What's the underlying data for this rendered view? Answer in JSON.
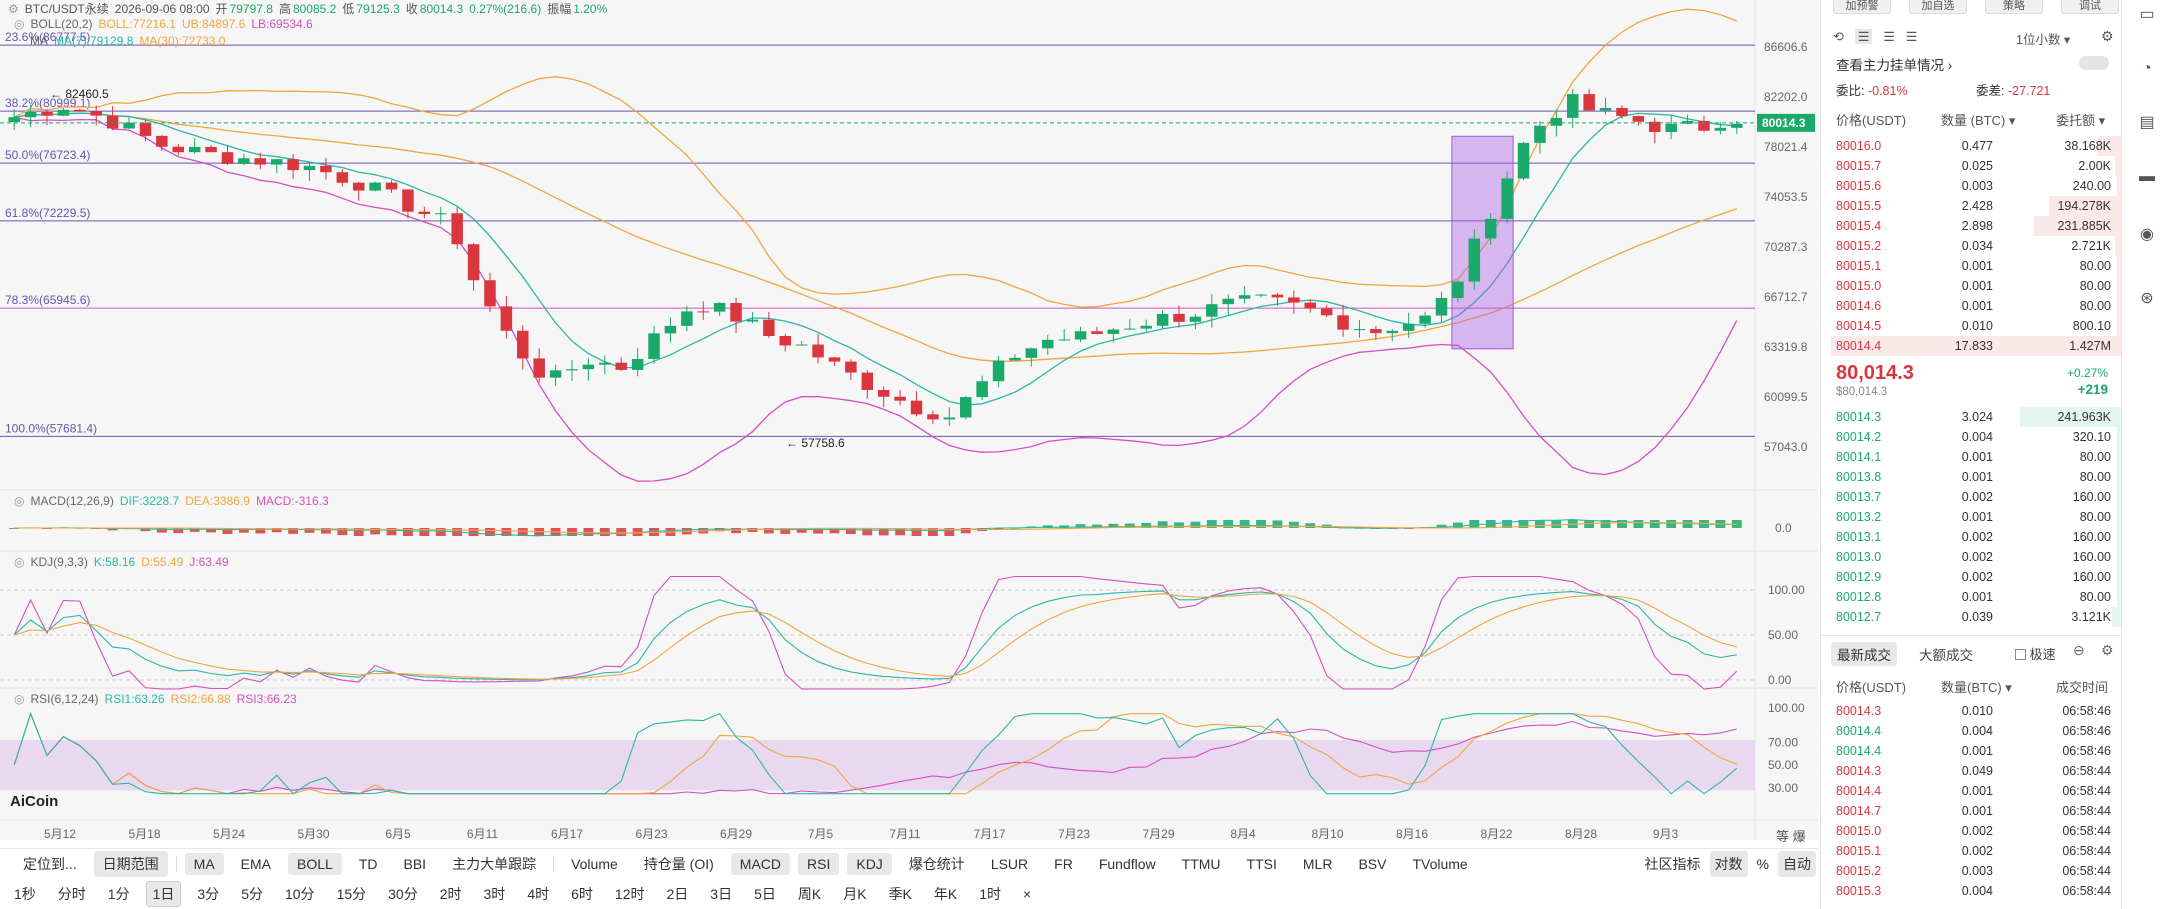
{
  "header": {
    "pair": "BTC/USDT永续",
    "date": "2026-09-06 08:00",
    "open_label": "开",
    "open": "79797.8",
    "high_label": "高",
    "high": "80085.2",
    "low_label": "低",
    "low": "79125.3",
    "close_label": "收",
    "close": "80014.3",
    "change": "0.27%(216.6)",
    "amp_label": "振幅",
    "amp": "1.20%"
  },
  "boll_label": {
    "name": "BOLL(20,2)",
    "boll": "BOLL:77216.1",
    "ub": "UB:84897.6",
    "lb": "LB:69534.6"
  },
  "ma_label": {
    "name": "MA",
    "ma7": "MA(7):79129.8",
    "ma30": "MA(30):72733.0",
    "fib236": "23.6%(86777.5)"
  },
  "price_axis": [
    "86606.6",
    "82202.0",
    "78021.4",
    "74053.5",
    "70287.3",
    "66712.7",
    "63319.8",
    "60099.5",
    "57043.0"
  ],
  "current_price_tag": "80014.3",
  "fib_levels": [
    {
      "label": "23.6%(86777.5)",
      "value": 86777.5
    },
    {
      "label": "38.2%(80999.1)",
      "value": 80999.1
    },
    {
      "label": "50.0%(76723.4)",
      "value": 76723.4
    },
    {
      "label": "61.8%(72229.5)",
      "value": 72229.5
    },
    {
      "label": "78.3%(65945.6)",
      "value": 65945.6
    },
    {
      "label": "100.0%(57681.4)",
      "value": 57681.4
    }
  ],
  "annotations": {
    "high_mark": "82460.5",
    "low_mark": "57758.6"
  },
  "date_axis": [
    "5月12",
    "5月18",
    "5月24",
    "5月30",
    "6月5",
    "6月11",
    "6月17",
    "6月23",
    "6月29",
    "7月5",
    "7月11",
    "7月17",
    "7月23",
    "7月29",
    "8月4",
    "8月10",
    "8月16",
    "8月22",
    "8月28",
    "9月3"
  ],
  "macd_label": {
    "name": "MACD(12,26,9)",
    "dif": "DIF:3228.7",
    "dea": "DEA:3386.9",
    "macd": "MACD:-316.3",
    "axis": "0.0"
  },
  "kdj_label": {
    "name": "KDJ(9,3,3)",
    "k": "K:58.16",
    "d": "D:55.49",
    "j": "J:63.49",
    "axis": [
      "100.00",
      "50.00",
      "0.00"
    ]
  },
  "rsi_label": {
    "name": "RSI(6,12,24)",
    "rsi1": "RSI1:63.26",
    "rsi2": "RSI2:66.88",
    "rsi3": "RSI3:66.23",
    "axis": [
      "100.00",
      "70.00",
      "50.00",
      "30.00"
    ]
  },
  "logo": "AiCoin",
  "scale_buttons": [
    "等",
    "爆"
  ],
  "toolbar_indicators": [
    {
      "label": "定位到...",
      "on": false
    },
    {
      "label": "日期范围",
      "on": true
    },
    {
      "label": "MA",
      "on": true
    },
    {
      "label": "EMA",
      "on": false
    },
    {
      "label": "BOLL",
      "on": true
    },
    {
      "label": "TD",
      "on": false
    },
    {
      "label": "BBI",
      "on": false
    },
    {
      "label": "主力大单跟踪",
      "on": false
    },
    {
      "label": "Volume",
      "on": false
    },
    {
      "label": "持仓量 (OI)",
      "on": false
    },
    {
      "label": "MACD",
      "on": true
    },
    {
      "label": "RSI",
      "on": true
    },
    {
      "label": "KDJ",
      "on": true
    },
    {
      "label": "爆仓统计",
      "on": false
    },
    {
      "label": "LSUR",
      "on": false
    },
    {
      "label": "FR",
      "on": false
    },
    {
      "label": "Fundflow",
      "on": false
    },
    {
      "label": "TTMU",
      "on": false
    },
    {
      "label": "TTSI",
      "on": false
    },
    {
      "label": "MLR",
      "on": false
    },
    {
      "label": "BSV",
      "on": false
    },
    {
      "label": "TVolume",
      "on": false
    }
  ],
  "toolbar_right": {
    "community": "社区指标",
    "log": "对数",
    "percent": "%",
    "auto": "自动"
  },
  "timeframes": [
    {
      "label": "1秒",
      "on": false
    },
    {
      "label": "分时",
      "on": false
    },
    {
      "label": "1分",
      "on": false
    },
    {
      "label": "1日",
      "on": true
    },
    {
      "label": "3分",
      "on": false
    },
    {
      "label": "5分",
      "on": false
    },
    {
      "label": "10分",
      "on": false
    },
    {
      "label": "15分",
      "on": false
    },
    {
      "label": "30分",
      "on": false
    },
    {
      "label": "2时",
      "on": false
    },
    {
      "label": "3时",
      "on": false
    },
    {
      "label": "4时",
      "on": false
    },
    {
      "label": "6时",
      "on": false
    },
    {
      "label": "12时",
      "on": false
    },
    {
      "label": "2日",
      "on": false
    },
    {
      "label": "3日",
      "on": false
    },
    {
      "label": "5日",
      "on": false
    },
    {
      "label": "周K",
      "on": false
    },
    {
      "label": "月K",
      "on": false
    },
    {
      "label": "季K",
      "on": false
    },
    {
      "label": "年K",
      "on": false
    },
    {
      "label": "1时",
      "on": false
    }
  ],
  "panel": {
    "top_buttons": [
      "加预警",
      "加自选",
      "策略",
      "调试"
    ],
    "decimal": "1位小数",
    "big_orders": "查看主力挂单情况",
    "ratio_label": "委比:",
    "ratio": "-0.81%",
    "diff_label": "委差:",
    "diff": "-27.721",
    "col_price": "价格(USDT)",
    "col_qty": "数量 (BTC)",
    "col_total": "委托额",
    "asks": [
      {
        "price": "80016.0",
        "qty": "0.477",
        "total": "38.168K",
        "depth": 0.08
      },
      {
        "price": "80015.7",
        "qty": "0.025",
        "total": "2.00K",
        "depth": 0.02
      },
      {
        "price": "80015.6",
        "qty": "0.003",
        "total": "240.00",
        "depth": 0.01
      },
      {
        "price": "80015.5",
        "qty": "2.428",
        "total": "194.278K",
        "depth": 0.25
      },
      {
        "price": "80015.4",
        "qty": "2.898",
        "total": "231.885K",
        "depth": 0.3
      },
      {
        "price": "80015.2",
        "qty": "0.034",
        "total": "2.721K",
        "depth": 0.02
      },
      {
        "price": "80015.1",
        "qty": "0.001",
        "total": "80.00",
        "depth": 0.01
      },
      {
        "price": "80015.0",
        "qty": "0.001",
        "total": "80.00",
        "depth": 0.01
      },
      {
        "price": "80014.6",
        "qty": "0.001",
        "total": "80.00",
        "depth": 0.01
      },
      {
        "price": "80014.5",
        "qty": "0.010",
        "total": "800.10",
        "depth": 0.01
      },
      {
        "price": "80014.4",
        "qty": "17.833",
        "total": "1.427M",
        "depth": 1.0
      }
    ],
    "last_price": "80,014.3",
    "last_price_sub": "$80,014.3",
    "last_change": "+0.27%",
    "last_change_abs": "+219",
    "bids": [
      {
        "price": "80014.3",
        "qty": "3.024",
        "total": "241.963K",
        "depth": 0.35
      },
      {
        "price": "80014.2",
        "qty": "0.004",
        "total": "320.10",
        "depth": 0.01
      },
      {
        "price": "80014.1",
        "qty": "0.001",
        "total": "80.00",
        "depth": 0.01
      },
      {
        "price": "80013.8",
        "qty": "0.001",
        "total": "80.00",
        "depth": 0.01
      },
      {
        "price": "80013.7",
        "qty": "0.002",
        "total": "160.00",
        "depth": 0.01
      },
      {
        "price": "80013.2",
        "qty": "0.001",
        "total": "80.00",
        "depth": 0.01
      },
      {
        "price": "80013.1",
        "qty": "0.002",
        "total": "160.00",
        "depth": 0.01
      },
      {
        "price": "80013.0",
        "qty": "0.002",
        "total": "160.00",
        "depth": 0.01
      },
      {
        "price": "80012.9",
        "qty": "0.002",
        "total": "160.00",
        "depth": 0.01
      },
      {
        "price": "80012.8",
        "qty": "0.001",
        "total": "80.00",
        "depth": 0.01
      },
      {
        "price": "80012.7",
        "qty": "0.039",
        "total": "3.121K",
        "depth": 0.03
      }
    ],
    "trades_tab": "最新成交",
    "big_trades_tab": "大额成交",
    "fast_label": "极速",
    "trade_col_price": "价格(USDT)",
    "trade_col_qty": "数量(BTC)",
    "trade_col_time": "成交时间",
    "trades": [
      {
        "price": "80014.3",
        "qty": "0.010",
        "time": "06:58:46",
        "side": "sell"
      },
      {
        "price": "80014.4",
        "qty": "0.004",
        "time": "06:58:46",
        "side": "buy"
      },
      {
        "price": "80014.4",
        "qty": "0.001",
        "time": "06:58:46",
        "side": "buy"
      },
      {
        "price": "80014.3",
        "qty": "0.049",
        "time": "06:58:44",
        "side": "sell"
      },
      {
        "price": "80014.4",
        "qty": "0.001",
        "time": "06:58:44",
        "side": "sell"
      },
      {
        "price": "80014.7",
        "qty": "0.001",
        "time": "06:58:44",
        "side": "sell"
      },
      {
        "price": "80015.0",
        "qty": "0.002",
        "time": "06:58:44",
        "side": "sell"
      },
      {
        "price": "80015.1",
        "qty": "0.002",
        "time": "06:58:44",
        "side": "sell"
      },
      {
        "price": "80015.2",
        "qty": "0.003",
        "time": "06:58:44",
        "side": "sell"
      },
      {
        "price": "80015.3",
        "qty": "0.004",
        "time": "06:58:44",
        "side": "sell"
      }
    ]
  },
  "colors": {
    "up": "#1aa86b",
    "down": "#d9363e",
    "ma7": "#2ab7a9",
    "ma30": "#f0a640",
    "boll_mid": "#f0a640",
    "boll_band": "#d44fc4",
    "fib": "#7a3da8"
  }
}
